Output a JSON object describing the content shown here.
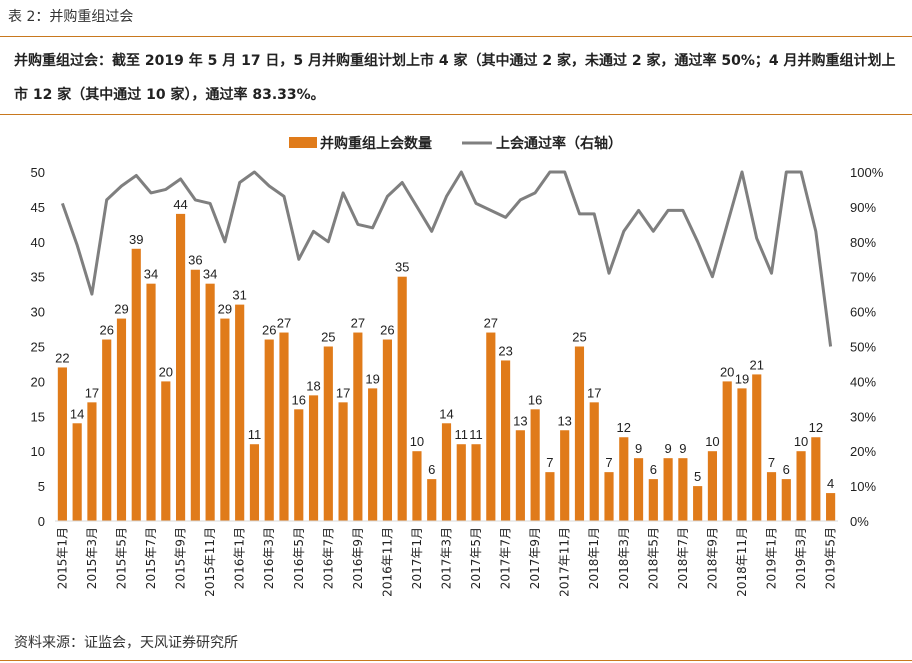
{
  "header": {
    "table_title": "表 2：并购重组过会",
    "summary": "并购重组过会：截至 2019 年 5 月 17 日，5 月并购重组计划上市 4 家（其中通过 2 家，未通过 2 家，通过率 50%；4 月并购重组计划上市 12 家（其中通过 10 家），通过率 83.33%。"
  },
  "footer": {
    "source": "资料来源：证监会，天风证券研究所"
  },
  "colors": {
    "bar": "#e07b1a",
    "line": "#7f7f7f",
    "rule": "#c8781e"
  },
  "chart_data": {
    "type": "bar",
    "x": [
      "2015年1月",
      "2015年2月",
      "2015年3月",
      "2015年4月",
      "2015年5月",
      "2015年6月",
      "2015年7月",
      "2015年8月",
      "2015年9月",
      "2015年10月",
      "2015年11月",
      "2015年12月",
      "2016年1月",
      "2016年2月",
      "2016年3月",
      "2016年4月",
      "2016年5月",
      "2016年6月",
      "2016年7月",
      "2016年8月",
      "2016年9月",
      "2016年10月",
      "2016年11月",
      "2016年12月",
      "2017年1月",
      "2017年2月",
      "2017年3月",
      "2017年4月",
      "2017年5月",
      "2017年6月",
      "2017年7月",
      "2017年8月",
      "2017年9月",
      "2017年10月",
      "2017年11月",
      "2017年12月",
      "2018年1月",
      "2018年2月",
      "2018年3月",
      "2018年4月",
      "2018年5月",
      "2018年6月",
      "2018年7月",
      "2018年8月",
      "2018年9月",
      "2018年10月",
      "2018年11月",
      "2018年12月",
      "2019年1月",
      "2019年2月",
      "2019年3月",
      "2019年4月",
      "2019年5月"
    ],
    "x_tick_labels": [
      "2015年1月",
      "2015年3月",
      "2015年5月",
      "2015年7月",
      "2015年9月",
      "2015年11月",
      "2016年1月",
      "2016年3月",
      "2016年5月",
      "2016年7月",
      "2016年9月",
      "2016年11月",
      "2017年1月",
      "2017年3月",
      "2017年5月",
      "2017年7月",
      "2017年9月",
      "2017年11月",
      "2018年1月",
      "2018年3月",
      "2018年5月",
      "2018年7月",
      "2018年9月",
      "2018年11月",
      "2019年1月",
      "2019年3月",
      "2019年5月"
    ],
    "series": [
      {
        "name": "并购重组上会数量",
        "type": "bar",
        "axis": "left",
        "values": [
          22,
          14,
          17,
          26,
          29,
          39,
          34,
          20,
          44,
          36,
          34,
          29,
          31,
          11,
          26,
          27,
          16,
          18,
          25,
          17,
          27,
          19,
          26,
          35,
          10,
          6,
          14,
          11,
          11,
          27,
          23,
          13,
          16,
          7,
          13,
          25,
          17,
          7,
          12,
          9,
          6,
          9,
          9,
          5,
          10,
          20,
          19,
          21,
          7,
          6,
          10,
          12,
          4
        ]
      },
      {
        "name": "上会通过率（右轴）",
        "type": "line",
        "axis": "right",
        "values": [
          91,
          79,
          65,
          92,
          96,
          99,
          94,
          95,
          98,
          92,
          91,
          80,
          97,
          100,
          96,
          93,
          75,
          83,
          80,
          94,
          85,
          84,
          93,
          97,
          90,
          83,
          93,
          100,
          91,
          89,
          87,
          92,
          94,
          100,
          100,
          88,
          88,
          71,
          83,
          89,
          83,
          89,
          89,
          80,
          70,
          85,
          100,
          81,
          71,
          100,
          100,
          83,
          50
        ]
      }
    ],
    "y_left": {
      "min": 0,
      "max": 50,
      "ticks": [
        0,
        5,
        10,
        15,
        20,
        25,
        30,
        35,
        40,
        45,
        50
      ]
    },
    "y_right": {
      "min": 0,
      "max": 100,
      "ticks": [
        "0%",
        "10%",
        "20%",
        "30%",
        "40%",
        "50%",
        "60%",
        "70%",
        "80%",
        "90%",
        "100%"
      ]
    },
    "legend": "top-center",
    "grid": false
  }
}
